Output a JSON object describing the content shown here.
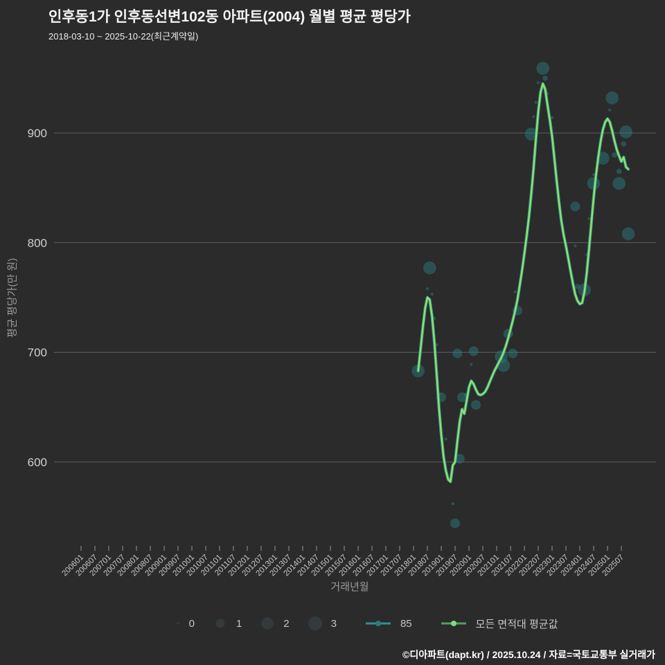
{
  "header": {
    "title": "인후동1가 인후동선변102동 아파트(2004) 월별 평균 평당가",
    "subtitle": "2018-03-10 ~ 2025-10-22(최근계약일)"
  },
  "footer": {
    "credit": "©디아파트(dapt.kr) / 2025.10.24 / 자료=국토교통부 실거래가"
  },
  "chart_data": {
    "type": "scatter",
    "title": "인후동1가 인후동선변102동 아파트(2004) 월별 평균 평당가",
    "xlabel": "거래년월",
    "ylabel": "평균 평당가(만 원)",
    "ylim": [
      530,
      975
    ],
    "grid": "horizontal-only",
    "legend_position": "bottom",
    "colors": {
      "background": "#2b2b2b",
      "grid": "#8a8a8a",
      "avg_line": "#94e25e",
      "line_85": "#2f8f96",
      "bubble": "#2c7a7a",
      "tick_text": "#c6c6c6",
      "y_tick_text": "#d0d0d0",
      "legend_85_dot": "#2a7d84",
      "legend_avg_line": "#55a05a",
      "legend_avg_dot": "#82d982"
    },
    "y_ticks": [
      {
        "label": "900",
        "value": 900
      },
      {
        "label": "800",
        "value": 800
      },
      {
        "label": "700",
        "value": 700
      },
      {
        "label": "600",
        "value": 600
      }
    ],
    "x_ticks": [
      "200601",
      "200607",
      "200701",
      "200707",
      "200801",
      "200807",
      "200901",
      "200907",
      "201001",
      "201007",
      "201101",
      "201107",
      "201201",
      "201207",
      "201301",
      "201307",
      "201401",
      "201407",
      "201501",
      "201507",
      "201601",
      "201607",
      "201701",
      "201707",
      "201801",
      "201807",
      "201901",
      "201907",
      "202001",
      "202007",
      "202101",
      "202107",
      "202201",
      "202207",
      "202301",
      "202307",
      "202401",
      "202407",
      "202501",
      "202507"
    ],
    "legend": {
      "size_labels": [
        "0",
        "1",
        "2",
        "3"
      ],
      "series_85_label": "85",
      "avg_label": "모든 면적대 평균값"
    },
    "bubble_radii": [
      2.2,
      3.8,
      7,
      9.3
    ],
    "series": [
      {
        "name": "85",
        "note": "coincides with average line, drawn beneath it"
      },
      {
        "name": "모든 면적대 평균값"
      }
    ],
    "average_line": [
      [
        "201803",
        683
      ],
      [
        "201804",
        702
      ],
      [
        "201805",
        722
      ],
      [
        "201806",
        740
      ],
      [
        "201807",
        750
      ],
      [
        "201808",
        748
      ],
      [
        "201809",
        733
      ],
      [
        "201810",
        710
      ],
      [
        "201811",
        681
      ],
      [
        "201812",
        650
      ],
      [
        "201901",
        625
      ],
      [
        "201902",
        605
      ],
      [
        "201903",
        592
      ],
      [
        "201904",
        584
      ],
      [
        "201905",
        582
      ],
      [
        "201906",
        597
      ],
      [
        "201907",
        600
      ],
      [
        "201908",
        619
      ],
      [
        "201909",
        637
      ],
      [
        "201910",
        648
      ],
      [
        "201911",
        644
      ],
      [
        "201912",
        656
      ],
      [
        "202001",
        668
      ],
      [
        "202002",
        674
      ],
      [
        "202003",
        671
      ],
      [
        "202004",
        666
      ],
      [
        "202005",
        662
      ],
      [
        "202006",
        661
      ],
      [
        "202007",
        662
      ],
      [
        "202008",
        664
      ],
      [
        "202009",
        668
      ],
      [
        "202010",
        673
      ],
      [
        "202011",
        678
      ],
      [
        "202012",
        683
      ],
      [
        "202101",
        687
      ],
      [
        "202102",
        691
      ],
      [
        "202103",
        695
      ],
      [
        "202104",
        700
      ],
      [
        "202105",
        706
      ],
      [
        "202106",
        713
      ],
      [
        "202107",
        721
      ],
      [
        "202108",
        729
      ],
      [
        "202109",
        738
      ],
      [
        "202110",
        748
      ],
      [
        "202111",
        761
      ],
      [
        "202112",
        775
      ],
      [
        "202201",
        790
      ],
      [
        "202202",
        806
      ],
      [
        "202203",
        824
      ],
      [
        "202204",
        845
      ],
      [
        "202205",
        868
      ],
      [
        "202206",
        895
      ],
      [
        "202207",
        919
      ],
      [
        "202208",
        937
      ],
      [
        "202209",
        945
      ],
      [
        "202210",
        940
      ],
      [
        "202211",
        926
      ],
      [
        "202212",
        912
      ],
      [
        "202301",
        897
      ],
      [
        "202302",
        877
      ],
      [
        "202303",
        856
      ],
      [
        "202304",
        837
      ],
      [
        "202305",
        820
      ],
      [
        "202306",
        807
      ],
      [
        "202307",
        797
      ],
      [
        "202308",
        786
      ],
      [
        "202309",
        774
      ],
      [
        "202310",
        763
      ],
      [
        "202311",
        753
      ],
      [
        "202312",
        747
      ],
      [
        "202401",
        744
      ],
      [
        "202402",
        745
      ],
      [
        "202403",
        755
      ],
      [
        "202404",
        772
      ],
      [
        "202405",
        794
      ],
      [
        "202406",
        818
      ],
      [
        "202407",
        841
      ],
      [
        "202408",
        861
      ],
      [
        "202409",
        878
      ],
      [
        "202410",
        892
      ],
      [
        "202411",
        903
      ],
      [
        "202412",
        910
      ],
      [
        "202501",
        913
      ],
      [
        "202502",
        910
      ],
      [
        "202503",
        902
      ],
      [
        "202504",
        893
      ],
      [
        "202505",
        885
      ],
      [
        "202506",
        879
      ],
      [
        "202507",
        874
      ],
      [
        "202508",
        878
      ],
      [
        "202509",
        869
      ],
      [
        "202510",
        867
      ]
    ],
    "bubbles": [
      [
        "201803",
        683,
        3
      ],
      [
        "201804",
        701,
        0
      ],
      [
        "201805",
        721,
        0
      ],
      [
        "201806",
        740,
        0
      ],
      [
        "201807",
        758,
        0
      ],
      [
        "201808",
        777,
        3
      ],
      [
        "201809",
        753,
        0
      ],
      [
        "201810",
        731,
        0
      ],
      [
        "201811",
        707,
        0
      ],
      [
        "201812",
        662,
        0
      ],
      [
        "201901",
        659,
        2
      ],
      [
        "201903",
        621,
        0
      ],
      [
        "201906",
        562,
        0
      ],
      [
        "201907",
        544,
        2
      ],
      [
        "201908",
        699,
        2
      ],
      [
        "201909",
        603,
        2
      ],
      [
        "201910",
        659,
        2
      ],
      [
        "201911",
        648,
        1
      ],
      [
        "201912",
        661,
        1
      ],
      [
        "202002",
        689,
        0
      ],
      [
        "202003",
        701,
        2
      ],
      [
        "202004",
        652,
        2
      ],
      [
        "202103",
        696,
        3
      ],
      [
        "202104",
        688,
        3
      ],
      [
        "202106",
        717,
        2
      ],
      [
        "202108",
        699,
        2
      ],
      [
        "202109",
        755,
        0
      ],
      [
        "202110",
        738,
        2
      ],
      [
        "202204",
        899,
        3
      ],
      [
        "202205",
        915,
        0
      ],
      [
        "202206",
        928,
        0
      ],
      [
        "202207",
        946,
        0
      ],
      [
        "202209",
        959,
        3
      ],
      [
        "202210",
        950,
        1
      ],
      [
        "202211",
        936,
        0
      ],
      [
        "202301",
        914,
        0
      ],
      [
        "202311",
        833,
        2
      ],
      [
        "202311",
        797,
        0
      ],
      [
        "202312",
        760,
        1
      ],
      [
        "202403",
        757,
        3
      ],
      [
        "202404",
        789,
        0
      ],
      [
        "202405",
        822,
        0
      ],
      [
        "202407",
        854,
        3
      ],
      [
        "202407",
        862,
        0
      ],
      [
        "202411",
        877,
        3
      ],
      [
        "202502",
        921,
        0
      ],
      [
        "202503",
        932,
        3
      ],
      [
        "202504",
        880,
        1
      ],
      [
        "202506",
        854,
        3
      ],
      [
        "202506",
        865,
        1
      ],
      [
        "202508",
        890,
        1
      ],
      [
        "202509",
        901,
        3
      ],
      [
        "202510",
        808,
        3
      ]
    ]
  }
}
